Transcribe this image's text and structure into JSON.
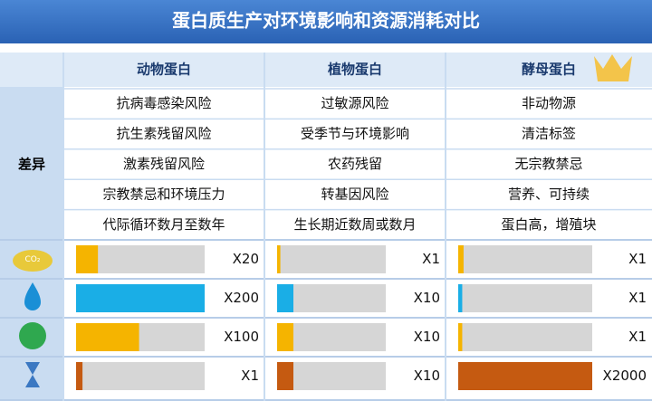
{
  "title": "蛋白质生产对环境影响和资源消耗对比",
  "columns": [
    "动物蛋白",
    "植物蛋白",
    "酵母蛋白"
  ],
  "row_header": "差异",
  "differences": [
    [
      "抗病毒感染风险",
      "过敏源风险",
      "非动物源"
    ],
    [
      "抗生素残留风险",
      "受季节与环境影响",
      "清洁标签"
    ],
    [
      "激素残留风险",
      "农药残留",
      "无宗教禁忌"
    ],
    [
      "宗教禁忌和环境压力",
      "转基因风险",
      "营养、可持续"
    ],
    [
      "代际循环数月至数年",
      "生长期近数周或数月",
      "蛋白高，增殖块"
    ]
  ],
  "metrics": [
    {
      "icon_label": "CO₂",
      "color": "#f5b400",
      "bars": [
        {
          "level": 17,
          "label": "X20"
        },
        {
          "level": 3,
          "label": "X1"
        },
        {
          "level": 4,
          "label": "X1"
        }
      ]
    },
    {
      "color": "#1aaee6",
      "bars": [
        {
          "level": 100,
          "label": "X200"
        },
        {
          "level": 15,
          "label": "X10"
        },
        {
          "level": 3,
          "label": "X1"
        }
      ]
    },
    {
      "color": "#f5b400",
      "bars": [
        {
          "level": 49,
          "label": "X100"
        },
        {
          "level": 15,
          "label": "X10"
        },
        {
          "level": 3,
          "label": "X1"
        }
      ]
    },
    {
      "color": "#c55a11",
      "bars": [
        {
          "level": 5,
          "label": "X1"
        },
        {
          "level": 15,
          "label": "X10"
        },
        {
          "level": 100,
          "label": "X2000"
        }
      ]
    }
  ]
}
